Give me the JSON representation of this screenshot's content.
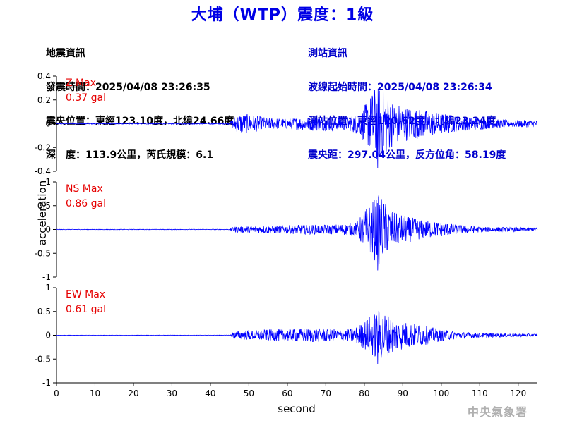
{
  "header": {
    "title": "大埔（WTP）震度：1級"
  },
  "quake_info": {
    "heading": "地震資訊",
    "origin_time": "發震時間：2025/04/08 23:26:35",
    "epicenter": "震央位置：東經123.10度，北緯24.66度",
    "depth_magnitude": "深　度：113.9公里，芮氏規模：6.1"
  },
  "station_info": {
    "heading": "測站資訊",
    "wave_start": "波線起始時間：2025/04/08 23:26:34",
    "location": "測站位置：東經120.62度，北緯23.24度",
    "distance": "震央距：297.04公里，反方位角：58.19度"
  },
  "footer": {
    "credit": "中央氣象署"
  },
  "colors": {
    "title": "#0000e6",
    "trace": "#0000ff",
    "max_label": "#e60000",
    "station_text": "#0000cc"
  },
  "chart_data": {
    "type": "line",
    "xlabel": "second",
    "ylabel": "acceleration",
    "xlim": [
      0,
      125
    ],
    "xticks": [
      0,
      10,
      20,
      30,
      40,
      50,
      60,
      70,
      80,
      90,
      100,
      110,
      120
    ],
    "series": [
      {
        "name": "Z",
        "max_label": "Z Max",
        "max_value": "0.37 gal",
        "ylim": [
          -0.4,
          0.4
        ],
        "yticks": [
          -0.4,
          -0.2,
          0,
          0.2,
          0.4
        ],
        "ytick_labels": [
          "-0.4",
          "-0.2",
          "0",
          "0.2",
          "0.4"
        ],
        "peak": 0.37,
        "envelope": [
          [
            0,
            0.004
          ],
          [
            45,
            0.005
          ],
          [
            46,
            0.06
          ],
          [
            48,
            0.09
          ],
          [
            55,
            0.05
          ],
          [
            60,
            0.045
          ],
          [
            65,
            0.06
          ],
          [
            70,
            0.06
          ],
          [
            76,
            0.06
          ],
          [
            79,
            0.1
          ],
          [
            81,
            0.2
          ],
          [
            83,
            0.33
          ],
          [
            85,
            0.3
          ],
          [
            87,
            0.2
          ],
          [
            90,
            0.15
          ],
          [
            95,
            0.12
          ],
          [
            100,
            0.09
          ],
          [
            105,
            0.06
          ],
          [
            110,
            0.05
          ],
          [
            115,
            0.035
          ],
          [
            120,
            0.03
          ],
          [
            125,
            0.03
          ]
        ]
      },
      {
        "name": "NS",
        "max_label": "NS Max",
        "max_value": "0.86 gal",
        "ylim": [
          -1,
          1
        ],
        "yticks": [
          -1,
          -0.5,
          0,
          0.5,
          1
        ],
        "ytick_labels": [
          "-1",
          "-0.5",
          "0",
          "0.5",
          "1"
        ],
        "peak": 0.86,
        "envelope": [
          [
            0,
            0.005
          ],
          [
            45,
            0.006
          ],
          [
            46,
            0.06
          ],
          [
            50,
            0.08
          ],
          [
            55,
            0.08
          ],
          [
            60,
            0.09
          ],
          [
            65,
            0.1
          ],
          [
            70,
            0.1
          ],
          [
            75,
            0.12
          ],
          [
            78,
            0.15
          ],
          [
            80,
            0.4
          ],
          [
            82,
            0.6
          ],
          [
            84,
            0.75
          ],
          [
            86,
            0.5
          ],
          [
            88,
            0.35
          ],
          [
            90,
            0.3
          ],
          [
            95,
            0.2
          ],
          [
            100,
            0.15
          ],
          [
            105,
            0.09
          ],
          [
            110,
            0.06
          ],
          [
            115,
            0.05
          ],
          [
            120,
            0.04
          ],
          [
            125,
            0.04
          ]
        ]
      },
      {
        "name": "EW",
        "max_label": "EW Max",
        "max_value": "0.61 gal",
        "ylim": [
          -1,
          1
        ],
        "yticks": [
          -1,
          -0.5,
          0,
          0.5,
          1
        ],
        "ytick_labels": [
          "-1",
          "-0.5",
          "0",
          "0.5",
          "1"
        ],
        "peak": 0.61,
        "envelope": [
          [
            0,
            0.004
          ],
          [
            45,
            0.005
          ],
          [
            46,
            0.08
          ],
          [
            50,
            0.1
          ],
          [
            55,
            0.12
          ],
          [
            60,
            0.13
          ],
          [
            65,
            0.15
          ],
          [
            70,
            0.14
          ],
          [
            75,
            0.12
          ],
          [
            78,
            0.18
          ],
          [
            80,
            0.3
          ],
          [
            82,
            0.45
          ],
          [
            84,
            0.55
          ],
          [
            86,
            0.45
          ],
          [
            88,
            0.35
          ],
          [
            90,
            0.3
          ],
          [
            95,
            0.22
          ],
          [
            100,
            0.12
          ],
          [
            105,
            0.07
          ],
          [
            110,
            0.05
          ],
          [
            115,
            0.04
          ],
          [
            120,
            0.03
          ],
          [
            125,
            0.03
          ]
        ]
      }
    ]
  }
}
